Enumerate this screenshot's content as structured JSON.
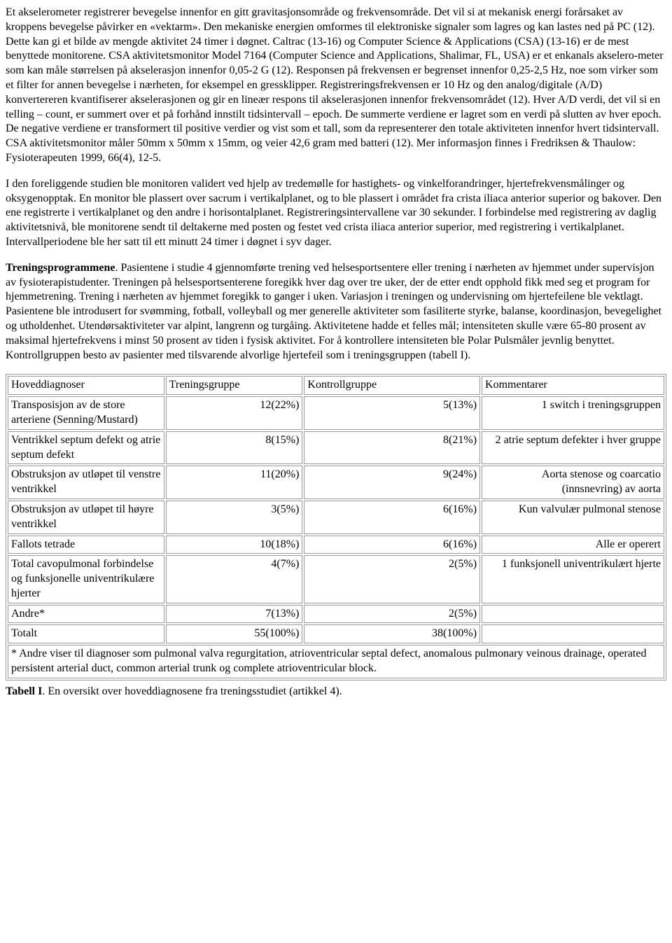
{
  "paragraphs": {
    "p1": "Et akselerometer registrerer bevegelse innenfor en gitt gravitasjonsområde og frekvensområde. Det vil si at mekanisk energi forårsaket av kroppens bevegelse påvirker en «vektarm». Den mekaniske energien omformes til elektroniske signaler som lagres og kan lastes ned på PC (12). Dette kan gi et bilde av mengde aktivitet 24 timer i døgnet. Caltrac (13-16) og Computer Science & Applications (CSA) (13-16) er de mest benyttede monitorene. CSA aktivitetsmonitor Model 7164 (Computer Science and Applications, Shalimar, FL, USA) er et enkanals akselero-meter som kan måle størrelsen på akselerasjon innenfor 0,05-2 G (12). Responsen på frekvensen er begrenset innenfor 0,25-2,5 Hz, noe som virker som et filter for annen bevegelse i nærheten, for eksempel en gressklipper. Registreringsfrekvensen er 10 Hz og den analog/digitale (A/D) konvertereren kvantifiserer akselerasjonen og gir en lineær respons til akselerasjonen innenfor frekvensområdet (12). Hver A/D verdi, det vil si en telling – count, er summert over et på forhånd innstilt tidsintervall – epoch. De summerte verdiene er lagret som en verdi på slutten av hver epoch. De negative verdiene er transformert til positive verdier og vist som et tall, som da representerer den totale aktiviteten innenfor hvert tidsintervall. CSA aktivitetsmonitor måler 50mm x 50mm x 15mm, og veier 42,6 gram med batteri (12). Mer informasjon finnes i Fredriksen & Thaulow: Fysioterapeuten 1999, 66(4), 12-5.",
    "p2": "I den foreliggende studien ble monitoren validert ved hjelp av tredemølle for hastighets- og vinkelforandringer, hjertefrekvensmålinger og oksygenopptak. En monitor ble plassert over sacrum i vertikalplanet, og to ble plassert i området fra crista iliaca anterior superior og bakover. Den ene registrerte i vertikalplanet og den andre i horisontalplanet. Registreringsintervallene var 30 sekunder. I forbindelse med registrering av daglig aktivitetsnivå, ble monitorene sendt til deltakerne med posten og festet ved crista iliaca anterior superior, med registrering i vertikalplanet. Intervallperiodene ble her satt til ett minutt 24 timer i døgnet i syv dager.",
    "p3_lead": "Treningsprogrammene",
    "p3_body": ". Pasientene i studie 4 gjennomførte trening ved helsesportsentere eller trening i nærheten av hjemmet under supervisjon av fysioterapistudenter. Treningen på helsesportsenterene foregikk hver dag over tre uker, der de etter endt opphold fikk med seg et program for hjemmetrening. Trening i nærheten av hjemmet foregikk to ganger i uken. Variasjon i treningen og undervisning om hjertefeilene ble vektlagt. Pasientene ble introdusert for svømming, fotball, volleyball og mer generelle aktiviteter som fasiliterte styrke, balanse, koordinasjon, bevegelighet og utholdenhet. Utendørsaktiviteter var alpint, langrenn og turgåing. Aktivitetene hadde et felles mål; intensiteten skulle være 65-80 prosent av maksimal hjertefrekvens i minst 50 prosent av tiden i fysisk aktivitet. For å kontrollere intensiteten ble Polar Pulsmåler jevnlig benyttet. Kontrollgruppen besto av pasienter med tilsvarende alvorlige hjertefeil som i treningsgruppen (tabell I)."
  },
  "table": {
    "headers": [
      "Hoveddiagnoser",
      "Treningsgruppe",
      "Kontrollgruppe",
      "Kommentarer"
    ],
    "rows": [
      {
        "c1": "Transposisjon av de store arteriene (Senning/Mustard)",
        "c2": "12(22%)",
        "c3": "5(13%)",
        "c4": "1 switch i treningsgruppen"
      },
      {
        "c1": "Ventrikkel septum defekt og atrie septum defekt",
        "c2": "8(15%)",
        "c3": "8(21%)",
        "c4": "2 atrie septum defekter i hver gruppe"
      },
      {
        "c1": "Obstruksjon av utløpet til venstre ventrikkel",
        "c2": "11(20%)",
        "c3": "9(24%)",
        "c4": "Aorta stenose og coarcatio (innsnevring) av aorta"
      },
      {
        "c1": "Obstruksjon av utløpet til høyre ventrikkel",
        "c2": "3(5%)",
        "c3": "6(16%)",
        "c4": "Kun valvulær pulmonal stenose"
      },
      {
        "c1": "Fallots tetrade",
        "c2": "10(18%)",
        "c3": "6(16%)",
        "c4": "Alle er operert"
      },
      {
        "c1": "Total cavopulmonal forbindelse og funksjonelle univentrikulære hjerter",
        "c2": "4(7%)",
        "c3": "2(5%)",
        "c4": "1 funksjonell univentrikulært hjerte"
      },
      {
        "c1": "Andre*",
        "c2": "7(13%)",
        "c3": "2(5%)",
        "c4": ""
      },
      {
        "c1": "Totalt",
        "c2": "55(100%)",
        "c3": "38(100%)",
        "c4": ""
      }
    ],
    "footnote": "* Andre viser til diagnoser som pulmonal valva regurgitation, atrioventricular septal defect, anomalous pulmonary veinous drainage, operated persistent arterial duct, common arterial trunk og complete atrioventricular block."
  },
  "caption_lead": "Tabell I",
  "caption_body": ". En oversikt over hoveddiagnosene fra treningsstudiet (artikkel 4)."
}
